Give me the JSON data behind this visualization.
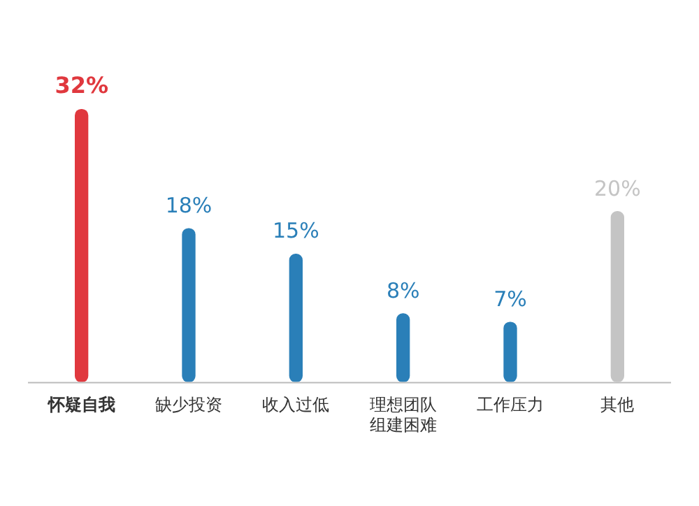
{
  "chart_data": {
    "type": "bar",
    "categories": [
      "怀疑自我",
      "缺少投资",
      "收入过低",
      "理想团队组建困难",
      "工作压力",
      "其他"
    ],
    "values": [
      32,
      18,
      15,
      8,
      7,
      20
    ],
    "colors": [
      "#e0383e",
      "#2a7fb8",
      "#2a7fb8",
      "#2a7fb8",
      "#2a7fb8",
      "#c4c4c4"
    ],
    "value_labels": [
      "32%",
      "18%",
      "15%",
      "8%",
      "7%",
      "20%"
    ],
    "grid": false,
    "legend": false
  }
}
